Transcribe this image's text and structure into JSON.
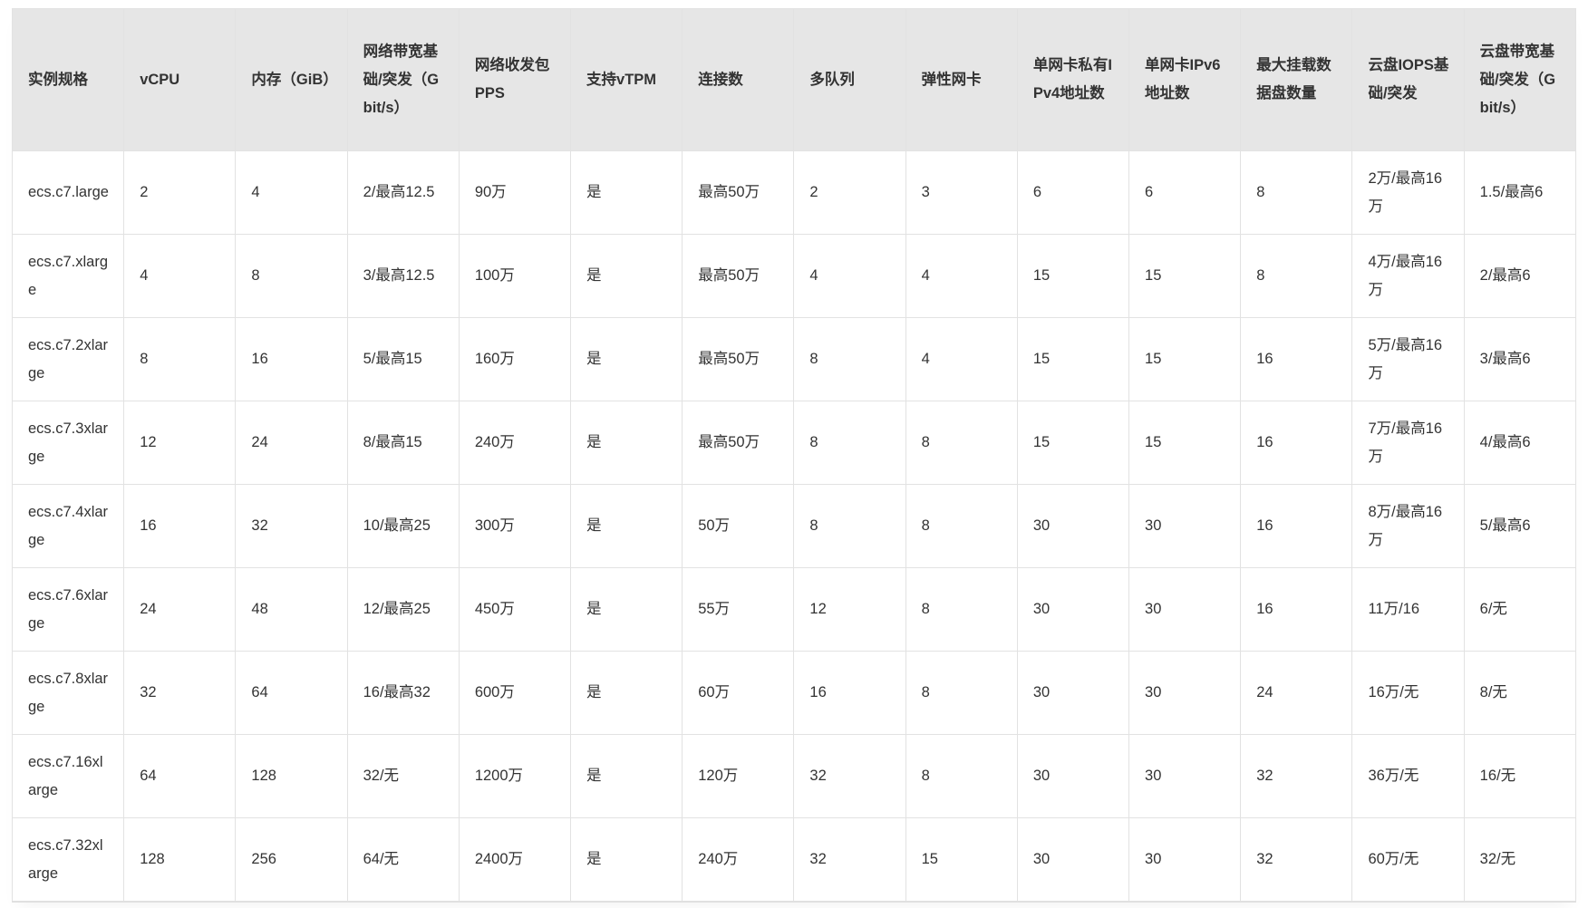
{
  "table": {
    "headers": [
      "实例规格",
      "vCPU",
      "内存（GiB）",
      "网络带宽基础/突发（Gbit/s）",
      "网络收发包PPS",
      "支持vTPM",
      "连接数",
      "多队列",
      "弹性网卡",
      "单网卡私有IPv4地址数",
      "单网卡IPv6地址数",
      "最大挂载数据盘数量",
      "云盘IOPS基础/突发",
      "云盘带宽基础/突发（Gbit/s）"
    ],
    "rows": [
      [
        "ecs.c7.large",
        "2",
        "4",
        "2/最高12.5",
        "90万",
        "是",
        "最高50万",
        "2",
        "3",
        "6",
        "6",
        "8",
        "2万/最高16万",
        "1.5/最高6"
      ],
      [
        "ecs.c7.xlarge",
        "4",
        "8",
        "3/最高12.5",
        "100万",
        "是",
        "最高50万",
        "4",
        "4",
        "15",
        "15",
        "8",
        "4万/最高16万",
        "2/最高6"
      ],
      [
        "ecs.c7.2xlarge",
        "8",
        "16",
        "5/最高15",
        "160万",
        "是",
        "最高50万",
        "8",
        "4",
        "15",
        "15",
        "16",
        "5万/最高16万",
        "3/最高6"
      ],
      [
        "ecs.c7.3xlarge",
        "12",
        "24",
        "8/最高15",
        "240万",
        "是",
        "最高50万",
        "8",
        "8",
        "15",
        "15",
        "16",
        "7万/最高16万",
        "4/最高6"
      ],
      [
        "ecs.c7.4xlarge",
        "16",
        "32",
        "10/最高25",
        "300万",
        "是",
        "50万",
        "8",
        "8",
        "30",
        "30",
        "16",
        "8万/最高16万",
        "5/最高6"
      ],
      [
        "ecs.c7.6xlarge",
        "24",
        "48",
        "12/最高25",
        "450万",
        "是",
        "55万",
        "12",
        "8",
        "30",
        "30",
        "16",
        "11万/16",
        "6/无"
      ],
      [
        "ecs.c7.8xlarge",
        "32",
        "64",
        "16/最高32",
        "600万",
        "是",
        "60万",
        "16",
        "8",
        "30",
        "30",
        "24",
        "16万/无",
        "8/无"
      ],
      [
        "ecs.c7.16xlarge",
        "64",
        "128",
        "32/无",
        "1200万",
        "是",
        "120万",
        "32",
        "8",
        "30",
        "30",
        "32",
        "36万/无",
        "16/无"
      ],
      [
        "ecs.c7.32xlarge",
        "128",
        "256",
        "64/无",
        "2400万",
        "是",
        "240万",
        "32",
        "15",
        "30",
        "30",
        "32",
        "60万/无",
        "32/无"
      ]
    ]
  },
  "colors": {
    "header_bg": "#e6e6e6",
    "border": "#e2e2e2",
    "text": "#333333"
  }
}
